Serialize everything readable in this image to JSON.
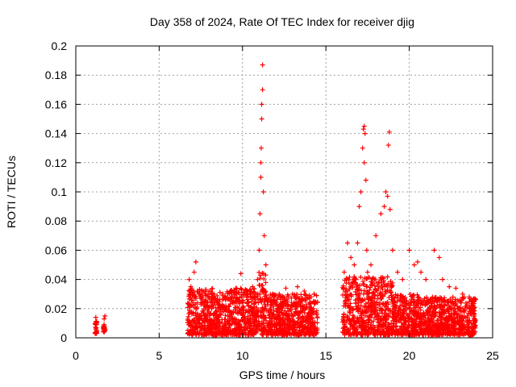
{
  "chart_data": {
    "type": "scatter",
    "title": "Day 358 of 2024, Rate Of TEC Index for receiver djig",
    "xlabel": "GPS time / hours",
    "ylabel": "ROTI / TECUs",
    "xlim": [
      0,
      25
    ],
    "ylim": [
      0,
      0.2
    ],
    "x_ticks": [
      0,
      5,
      10,
      15,
      20,
      25
    ],
    "x_tick_labels": [
      "0",
      "5",
      "10",
      "15",
      "20",
      "25"
    ],
    "y_ticks": [
      0,
      0.02,
      0.04,
      0.06,
      0.08,
      0.1,
      0.12,
      0.14,
      0.16,
      0.18,
      0.2
    ],
    "y_tick_labels": [
      "0",
      "0.02",
      "0.04",
      "0.06",
      "0.08",
      "0.1",
      "0.12",
      "0.14",
      "0.16",
      "0.18",
      "0.2"
    ],
    "grid": true,
    "marker": "+",
    "marker_color": "#ff0000",
    "series": [
      {
        "name": "ROTI",
        "x": [
          1.2,
          1.2,
          1.2,
          1.2,
          1.2,
          1.25,
          1.25,
          1.7,
          1.7,
          1.7,
          1.7,
          1.75,
          1.75,
          6.8,
          6.9,
          7.0,
          7.1,
          7.2,
          7.5,
          7.7,
          8.0,
          8.3,
          8.6,
          9.0,
          9.4,
          9.7,
          9.9,
          10.2,
          10.6,
          10.9,
          11.0,
          11.05,
          11.1,
          11.1,
          11.12,
          11.15,
          11.15,
          11.2,
          11.2,
          11.25,
          11.3,
          11.4,
          11.8,
          12.2,
          12.6,
          13.0,
          13.3,
          13.7,
          14.0,
          14.3,
          16.1,
          16.3,
          16.5,
          16.7,
          16.9,
          17.0,
          17.1,
          17.2,
          17.25,
          17.3,
          17.3,
          17.35,
          17.4,
          17.45,
          17.5,
          17.7,
          18.0,
          18.3,
          18.5,
          18.6,
          18.7,
          18.75,
          18.8,
          18.85,
          19.0,
          19.3,
          19.6,
          20.0,
          20.3,
          20.5,
          20.7,
          21.0,
          21.5,
          21.8,
          22.0,
          22.4,
          22.8,
          23.2,
          23.6,
          23.9
        ],
        "y": [
          0.003,
          0.006,
          0.009,
          0.011,
          0.014,
          0.005,
          0.01,
          0.004,
          0.007,
          0.009,
          0.013,
          0.006,
          0.015,
          0.04,
          0.035,
          0.03,
          0.045,
          0.052,
          0.03,
          0.025,
          0.028,
          0.03,
          0.025,
          0.022,
          0.024,
          0.026,
          0.044,
          0.03,
          0.035,
          0.04,
          0.06,
          0.085,
          0.11,
          0.12,
          0.13,
          0.15,
          0.16,
          0.17,
          0.187,
          0.1,
          0.07,
          0.05,
          0.03,
          0.03,
          0.034,
          0.03,
          0.035,
          0.032,
          0.028,
          0.03,
          0.045,
          0.065,
          0.055,
          0.05,
          0.065,
          0.09,
          0.1,
          0.13,
          0.143,
          0.145,
          0.12,
          0.14,
          0.108,
          0.06,
          0.045,
          0.05,
          0.07,
          0.085,
          0.09,
          0.1,
          0.097,
          0.132,
          0.141,
          0.088,
          0.06,
          0.045,
          0.04,
          0.06,
          0.05,
          0.052,
          0.045,
          0.04,
          0.06,
          0.055,
          0.04,
          0.035,
          0.034,
          0.03,
          0.028,
          0.025
        ]
      }
    ],
    "dense_bands": [
      {
        "x_range": [
          1.15,
          1.25
        ],
        "y_range": [
          0.003,
          0.012
        ]
      },
      {
        "x_range": [
          1.65,
          1.75
        ],
        "y_range": [
          0.004,
          0.011
        ]
      },
      {
        "x_range": [
          6.7,
          10.95
        ],
        "y_range": [
          0.002,
          0.034
        ]
      },
      {
        "x_range": [
          10.95,
          11.4
        ],
        "y_range": [
          0.002,
          0.045
        ]
      },
      {
        "x_range": [
          11.4,
          14.5
        ],
        "y_range": [
          0.002,
          0.03
        ]
      },
      {
        "x_range": [
          16.0,
          19.0
        ],
        "y_range": [
          0.002,
          0.042
        ]
      },
      {
        "x_range": [
          19.0,
          20.5
        ],
        "y_range": [
          0.002,
          0.03
        ]
      },
      {
        "x_range": [
          20.5,
          24.0
        ],
        "y_range": [
          0.002,
          0.028
        ]
      }
    ]
  }
}
